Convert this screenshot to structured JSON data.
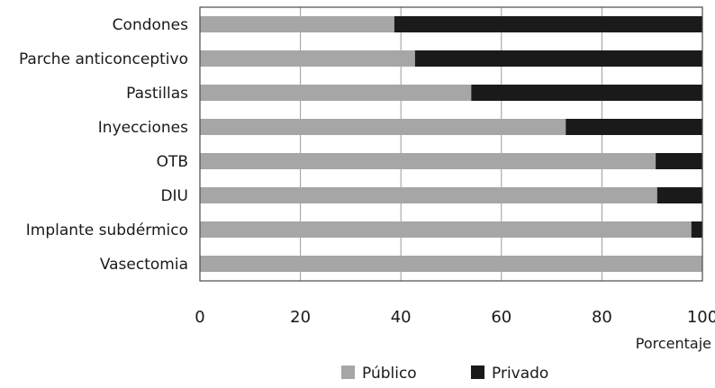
{
  "chart_data": {
    "type": "bar",
    "orientation": "horizontal",
    "stacked": true,
    "categories": [
      "Condones",
      "Parche anticonceptivo",
      "Pastillas",
      "Inyecciones",
      "OTB",
      "DIU",
      "Implante subdérmico",
      "Vasectomia"
    ],
    "series": [
      {
        "name": "Público",
        "color": "#a6a6a6",
        "values": [
          38.7,
          42.8,
          54.0,
          72.8,
          90.7,
          91.0,
          97.8,
          100.0
        ]
      },
      {
        "name": "Privado",
        "color": "#1a1a1a",
        "values": [
          61.3,
          57.2,
          46.0,
          27.2,
          9.3,
          9.0,
          2.2,
          0.0
        ]
      }
    ],
    "xlabel": "Porcentaje",
    "ylabel": "",
    "xlim": [
      0,
      100
    ],
    "xticks": [
      0,
      20,
      40,
      60,
      80,
      100
    ],
    "grid": "vertical",
    "legend_position": "bottom"
  }
}
